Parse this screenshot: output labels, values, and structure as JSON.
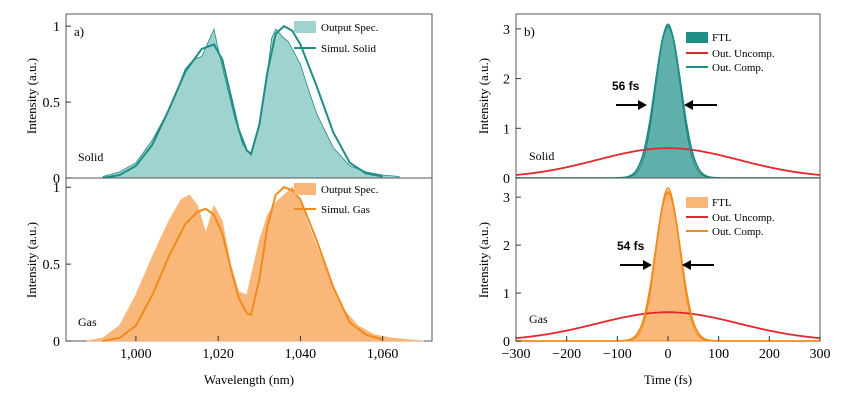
{
  "colors": {
    "solid_fill": "#9fd3cf",
    "solid_line": "#1f8c86",
    "gas_fill": "#f9b77a",
    "gas_line": "#f28a1c",
    "uncomp_line": "#e0282c"
  },
  "chart_data": [
    {
      "panel": "a",
      "type": "area",
      "xlabel": "Wavelength (nm)",
      "ylabel": "Intensity (a.u.)",
      "xlim": [
        983,
        1072
      ],
      "xticks": [
        "1,000",
        "1,020",
        "1,040",
        "1,060"
      ],
      "xtick_values": [
        1000,
        1020,
        1040,
        1060
      ],
      "subplots": [
        {
          "side_label": "Solid",
          "ylim": [
            0,
            1.08
          ],
          "yticks": [
            "0",
            "0.5",
            "1"
          ],
          "ytick_values": [
            0,
            0.5,
            1
          ],
          "legend": [
            "Output Spec.",
            "Simul. Solid"
          ],
          "series": [
            {
              "name": "Output Spec.",
              "kind": "area",
              "x": [
                992,
                996,
                1000,
                1004,
                1008,
                1010,
                1012,
                1014,
                1016,
                1018,
                1019,
                1020,
                1022,
                1024,
                1026,
                1028,
                1030,
                1032,
                1033,
                1034,
                1035,
                1036,
                1037,
                1038,
                1040,
                1042,
                1044,
                1048,
                1052,
                1056,
                1060,
                1064
              ],
              "y": [
                0.01,
                0.04,
                0.1,
                0.25,
                0.45,
                0.58,
                0.72,
                0.78,
                0.8,
                0.92,
                0.98,
                0.85,
                0.62,
                0.4,
                0.22,
                0.15,
                0.35,
                0.7,
                0.92,
                0.98,
                0.95,
                0.92,
                0.9,
                0.85,
                0.75,
                0.58,
                0.42,
                0.2,
                0.08,
                0.04,
                0.02,
                0.01
              ]
            },
            {
              "name": "Simul. Solid",
              "kind": "line",
              "x": [
                992,
                996,
                1000,
                1004,
                1008,
                1012,
                1016,
                1019,
                1021,
                1023,
                1025,
                1027,
                1028,
                1030,
                1032,
                1034,
                1036,
                1038,
                1040,
                1044,
                1048,
                1052,
                1056,
                1060
              ],
              "y": [
                0.0,
                0.02,
                0.08,
                0.22,
                0.45,
                0.7,
                0.85,
                0.88,
                0.78,
                0.55,
                0.32,
                0.18,
                0.16,
                0.35,
                0.7,
                0.95,
                1.0,
                0.97,
                0.88,
                0.6,
                0.3,
                0.1,
                0.03,
                0.01
              ]
            }
          ]
        },
        {
          "side_label": "Gas",
          "ylim": [
            0,
            1.06
          ],
          "yticks": [
            "0",
            "0.5",
            "1"
          ],
          "ytick_values": [
            0,
            0.5,
            1
          ],
          "legend": [
            "Output Spec.",
            "Simul. Gas"
          ],
          "series": [
            {
              "name": "Output Spec.",
              "kind": "area",
              "x": [
                988,
                992,
                996,
                1000,
                1004,
                1008,
                1011,
                1013,
                1015,
                1017,
                1019,
                1021,
                1023,
                1025,
                1027,
                1028,
                1030,
                1032,
                1034,
                1036,
                1038,
                1040,
                1042,
                1046,
                1050,
                1054,
                1058,
                1062,
                1066,
                1070
              ],
              "y": [
                0.0,
                0.02,
                0.1,
                0.3,
                0.55,
                0.78,
                0.92,
                0.95,
                0.88,
                0.7,
                0.88,
                0.78,
                0.5,
                0.32,
                0.3,
                0.42,
                0.65,
                0.82,
                0.9,
                0.95,
                1.0,
                0.9,
                0.75,
                0.48,
                0.22,
                0.1,
                0.04,
                0.02,
                0.01,
                0.0
              ]
            },
            {
              "name": "Simul. Gas",
              "kind": "line",
              "x": [
                992,
                996,
                1000,
                1004,
                1008,
                1012,
                1015,
                1017,
                1019,
                1021,
                1023,
                1025,
                1027,
                1028,
                1030,
                1032,
                1034,
                1036,
                1038,
                1040,
                1044,
                1048,
                1052,
                1056,
                1060
              ],
              "y": [
                0.0,
                0.02,
                0.1,
                0.3,
                0.55,
                0.76,
                0.84,
                0.86,
                0.82,
                0.7,
                0.48,
                0.28,
                0.18,
                0.17,
                0.4,
                0.75,
                0.95,
                1.0,
                0.98,
                0.92,
                0.65,
                0.35,
                0.12,
                0.04,
                0.01
              ]
            }
          ]
        }
      ]
    },
    {
      "panel": "b",
      "type": "area",
      "xlabel": "Time (fs)",
      "ylabel": "Intensity (a.u.)",
      "xlim": [
        -300,
        300
      ],
      "xticks": [
        "−300",
        "−200",
        "−100",
        "0",
        "100",
        "200",
        "300"
      ],
      "xtick_values": [
        -300,
        -200,
        -100,
        0,
        100,
        200,
        300
      ],
      "subplots": [
        {
          "side_label": "Solid",
          "ylim": [
            0,
            3.3
          ],
          "yticks": [
            "0",
            "1",
            "2",
            "3"
          ],
          "ytick_values": [
            0,
            1,
            2,
            3
          ],
          "legend": [
            "FTL",
            "Out. Uncomp.",
            "Out. Comp."
          ],
          "annotation": "56 fs",
          "ftl_peak": 3.1,
          "ftl_fwhm": 56,
          "uncomp_peak": 0.6,
          "uncomp_fwhm": 330,
          "comp_peak": 3.05,
          "comp_fwhm": 60
        },
        {
          "side_label": "Gas",
          "ylim": [
            0,
            3.4
          ],
          "yticks": [
            "0",
            "1",
            "2",
            "3"
          ],
          "ytick_values": [
            0,
            1,
            2,
            3
          ],
          "legend": [
            "FTL",
            "Out. Uncomp.",
            "Out. Comp."
          ],
          "annotation": "54 fs",
          "ftl_peak": 3.2,
          "ftl_fwhm": 54,
          "uncomp_peak": 0.6,
          "uncomp_fwhm": 330,
          "comp_peak": 3.1,
          "comp_fwhm": 58
        }
      ]
    }
  ]
}
